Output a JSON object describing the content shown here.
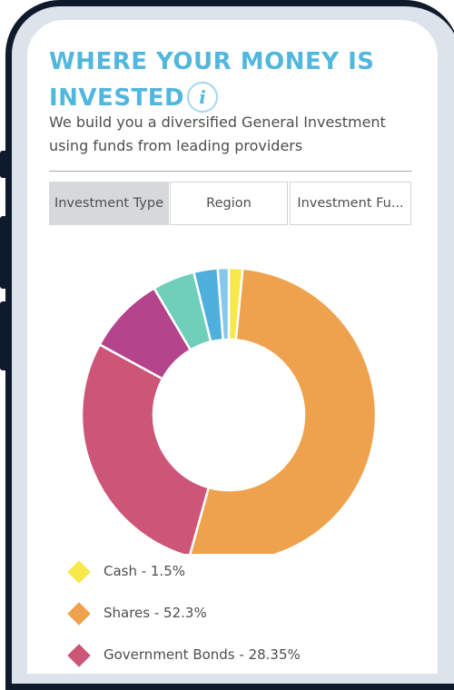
{
  "section": {
    "title": "WHERE YOUR MONEY IS INVESTED",
    "info_icon_label": "i",
    "subtitle": "We build you a diversified General Investment using funds from leading providers"
  },
  "tabs": [
    {
      "label": "Investment Type",
      "selected": true
    },
    {
      "label": "Region",
      "selected": false
    },
    {
      "label": "Investment Fu...",
      "selected": false
    }
  ],
  "chart_data": {
    "type": "pie",
    "donut": true,
    "slices": [
      {
        "label": "Cash",
        "value": 1.5,
        "color": "#f7e94a"
      },
      {
        "label": "Shares",
        "value": 52.3,
        "color": "#efa24d"
      },
      {
        "label": "Government Bonds",
        "value": 28.35,
        "color": "#cd5578"
      },
      {
        "label": "",
        "value": 8.5,
        "color": "#b4448b"
      },
      {
        "label": "",
        "value": 4.6,
        "color": "#6fcfbb"
      },
      {
        "label": "",
        "value": 2.6,
        "color": "#4fb0de"
      },
      {
        "label": "",
        "value": 1.2,
        "color": "#86c8ec"
      }
    ]
  },
  "legend": [
    {
      "text": "Cash - 1.5%",
      "color": "#f7e94a"
    },
    {
      "text": "Shares - 52.3%",
      "color": "#efa24d"
    },
    {
      "text": "Government Bonds - 28.35%",
      "color": "#cd5578"
    }
  ]
}
